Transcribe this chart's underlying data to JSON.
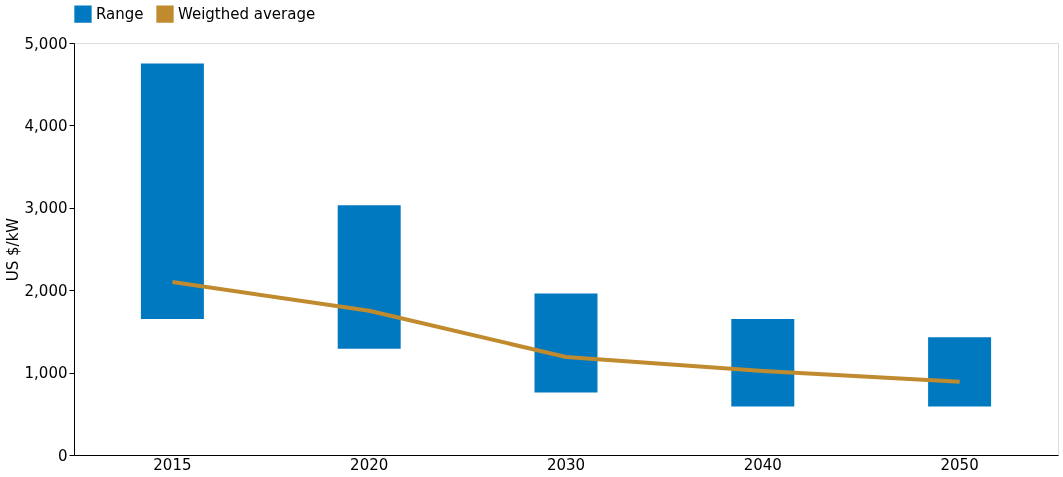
{
  "chart_data": {
    "type": "bar",
    "ylabel": "US $/kW",
    "categories": [
      "2015",
      "2020",
      "2030",
      "2040",
      "2050"
    ],
    "series": [
      {
        "name": "Range",
        "color": "#0079c1",
        "base": [
          1650,
          1290,
          760,
          590,
          590
        ],
        "values": [
          3100,
          1740,
          1200,
          1060,
          840
        ]
      },
      {
        "name": "Weigthed average",
        "type": "line",
        "color": "#c08a2e",
        "values": [
          2100,
          1750,
          1190,
          1020,
          890
        ],
        "line_style": "solid"
      }
    ],
    "ylim": [
      0,
      5000
    ],
    "yticks": [
      0,
      {
        "value": 1000,
        "label": "1,000"
      },
      {
        "value": 2000,
        "label": "2,000"
      },
      {
        "value": 3000,
        "label": "3,000"
      },
      {
        "value": 4000,
        "label": "4,000"
      },
      {
        "value": 5000,
        "label": "5,000"
      }
    ],
    "grid": false,
    "legend": "top"
  }
}
